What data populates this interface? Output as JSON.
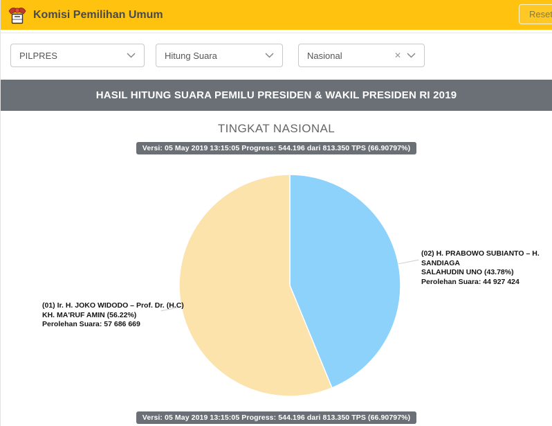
{
  "header": {
    "title": "Komisi Pemilihan Umum",
    "reset_label": "Reset",
    "background": "#FFC20E"
  },
  "filters": {
    "election_value": "PILPRES",
    "view_value": "Hitung Suara",
    "region_value": "Nasional"
  },
  "icons": {
    "clear": "✕"
  },
  "banner": {
    "title": "HASIL HITUNG SUARA PEMILU PRESIDEN & WAKIL PRESIDEN RI 2019",
    "background": "#6B7077"
  },
  "main": {
    "section_title": "TINGKAT NASIONAL",
    "version_text": "Versi: 05 May 2019 13:15:05 Progress: 544.196 dari 813.350 TPS (66.90797%)"
  },
  "chart_data": {
    "type": "pie",
    "title": "TINGKAT NASIONAL",
    "slices": [
      {
        "id": "01",
        "candidate": "(01) Ir. H. JOKO WIDODO – Prof. Dr. (H.C) KH. MA'RUF AMIN",
        "percent": 56.22,
        "votes": "57 686 669",
        "color": "#FCE2AB",
        "label_lines": [
          "(01) Ir. H. JOKO WIDODO – Prof. Dr. (H.C)",
          "KH. MA'RUF AMIN (56.22%)",
          "Perolehan Suara: 57 686 669"
        ]
      },
      {
        "id": "02",
        "candidate": "(02) H. PRABOWO SUBIANTO – H. SANDIAGA SALAHUDIN UNO",
        "percent": 43.78,
        "votes": "44 927 424",
        "color": "#8DD2FB",
        "label_lines": [
          "(02) H. PRABOWO SUBIANTO – H. SANDIAGA",
          "SALAHUDIN UNO (43.78%)",
          "Perolehan Suara: 44 927 424"
        ]
      }
    ],
    "render": {
      "start_angle_deg": 0,
      "direction": "clockwise",
      "order": [
        1,
        0
      ]
    },
    "connector_color": "#CCCCCC",
    "legend": "none"
  }
}
